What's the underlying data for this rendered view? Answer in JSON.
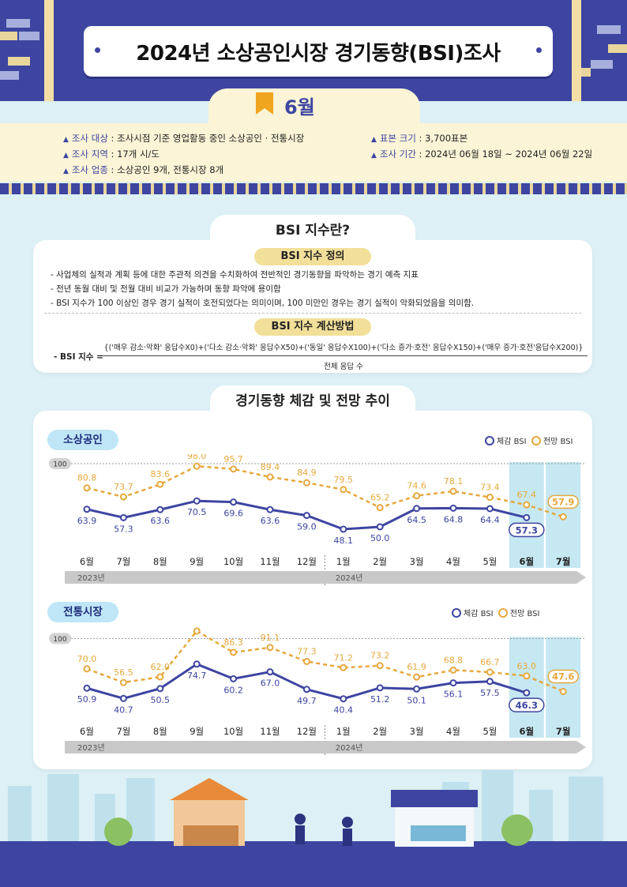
{
  "header": {
    "title": "2024년 소상공인시장 경기동향(BSI)조사",
    "month": "6월"
  },
  "survey": {
    "target_label": "조사 대상",
    "target_value": " : 조사시점 기준 영업활동 중인 소상공인 · 전통시장",
    "region_label": "조사 지역",
    "region_value": " : 17개 시/도",
    "industry_label": "조사 업종",
    "industry_value": " : 소상공인 9개, 전통시장 8개",
    "sample_label": "표본 크기",
    "sample_value": " : 3,700표본",
    "period_label": "조사 기간",
    "period_value": " : 2024년 06월 18일 ~ 2024년 06월 22일"
  },
  "bsi": {
    "heading": "BSI 지수란?",
    "def_title": "BSI 지수 정의",
    "def_lines": [
      "- 사업체의 실적과 계획 등에 대한 주관적 의견을 수치화하여 전반적인 경기동향을 파악하는 경기 예측 지표",
      "- 전년 동월 대비 및 전월 대비 비교가 가능하며 동향 파악에 용이함",
      "- BSI 지수가 100 이상인 경우 경기 실적이 호전되었다는 의미이며, 100 미만인 경우는 경기 실적이 악화되었음을 의미함."
    ],
    "calc_title": "BSI 지수 계산방법",
    "formula_label": "- BSI 지수 =",
    "formula_numerator": "{('매우 감소·악화' 응답수X0)+('다소 감소·악화' 응답수X50)+('동일' 응답수X100)+('다소 증가·호전' 응답수X150)+('매우 증가·호전'응답수X200)}",
    "formula_denominator": "전체 응답 수"
  },
  "trend_heading": "경기동향 체감 및 전망 추이",
  "legend": {
    "actual": "체감 BSI",
    "outlook": "전망 BSI"
  },
  "colors": {
    "navy": "#3d45a1",
    "orange": "#e6a83d",
    "highlight": "#c6e8f2",
    "cream": "#fbf4d6"
  },
  "chart_data": [
    {
      "type": "line",
      "title": "소상공인",
      "categories": [
        "6월",
        "7월",
        "8월",
        "9월",
        "10월",
        "11월",
        "12월",
        "1월",
        "2월",
        "3월",
        "4월",
        "5월",
        "6월",
        "7월"
      ],
      "year_labels": [
        "2023년",
        "2024년"
      ],
      "reference": "100",
      "series": [
        {
          "name": "체감 BSI",
          "values": [
            63.9,
            57.3,
            63.6,
            70.5,
            69.6,
            63.6,
            59.0,
            48.1,
            50.0,
            64.5,
            64.8,
            64.4,
            57.3,
            null
          ]
        },
        {
          "name": "전망 BSI",
          "values": [
            80.8,
            73.7,
            83.6,
            98.0,
            95.7,
            89.4,
            84.9,
            79.5,
            65.2,
            74.6,
            78.1,
            73.4,
            67.4,
            57.9
          ]
        }
      ],
      "ylim": [
        40,
        100
      ]
    },
    {
      "type": "line",
      "title": "전통시장",
      "categories": [
        "6월",
        "7월",
        "8월",
        "9월",
        "10월",
        "11월",
        "12월",
        "1월",
        "2월",
        "3월",
        "4월",
        "5월",
        "6월",
        "7월"
      ],
      "year_labels": [
        "2023년",
        "2024년"
      ],
      "reference": "100",
      "series": [
        {
          "name": "체감 BSI",
          "values": [
            50.9,
            40.7,
            50.5,
            74.7,
            60.2,
            67.0,
            49.7,
            40.4,
            51.2,
            50.1,
            56.1,
            57.5,
            46.3,
            null
          ]
        },
        {
          "name": "전망 BSI",
          "values": [
            70.0,
            56.5,
            62.0,
            107.4,
            86.3,
            91.1,
            77.3,
            71.2,
            73.2,
            61.9,
            68.8,
            66.7,
            63.0,
            47.6
          ]
        }
      ],
      "ylim": [
        30,
        105
      ]
    }
  ]
}
